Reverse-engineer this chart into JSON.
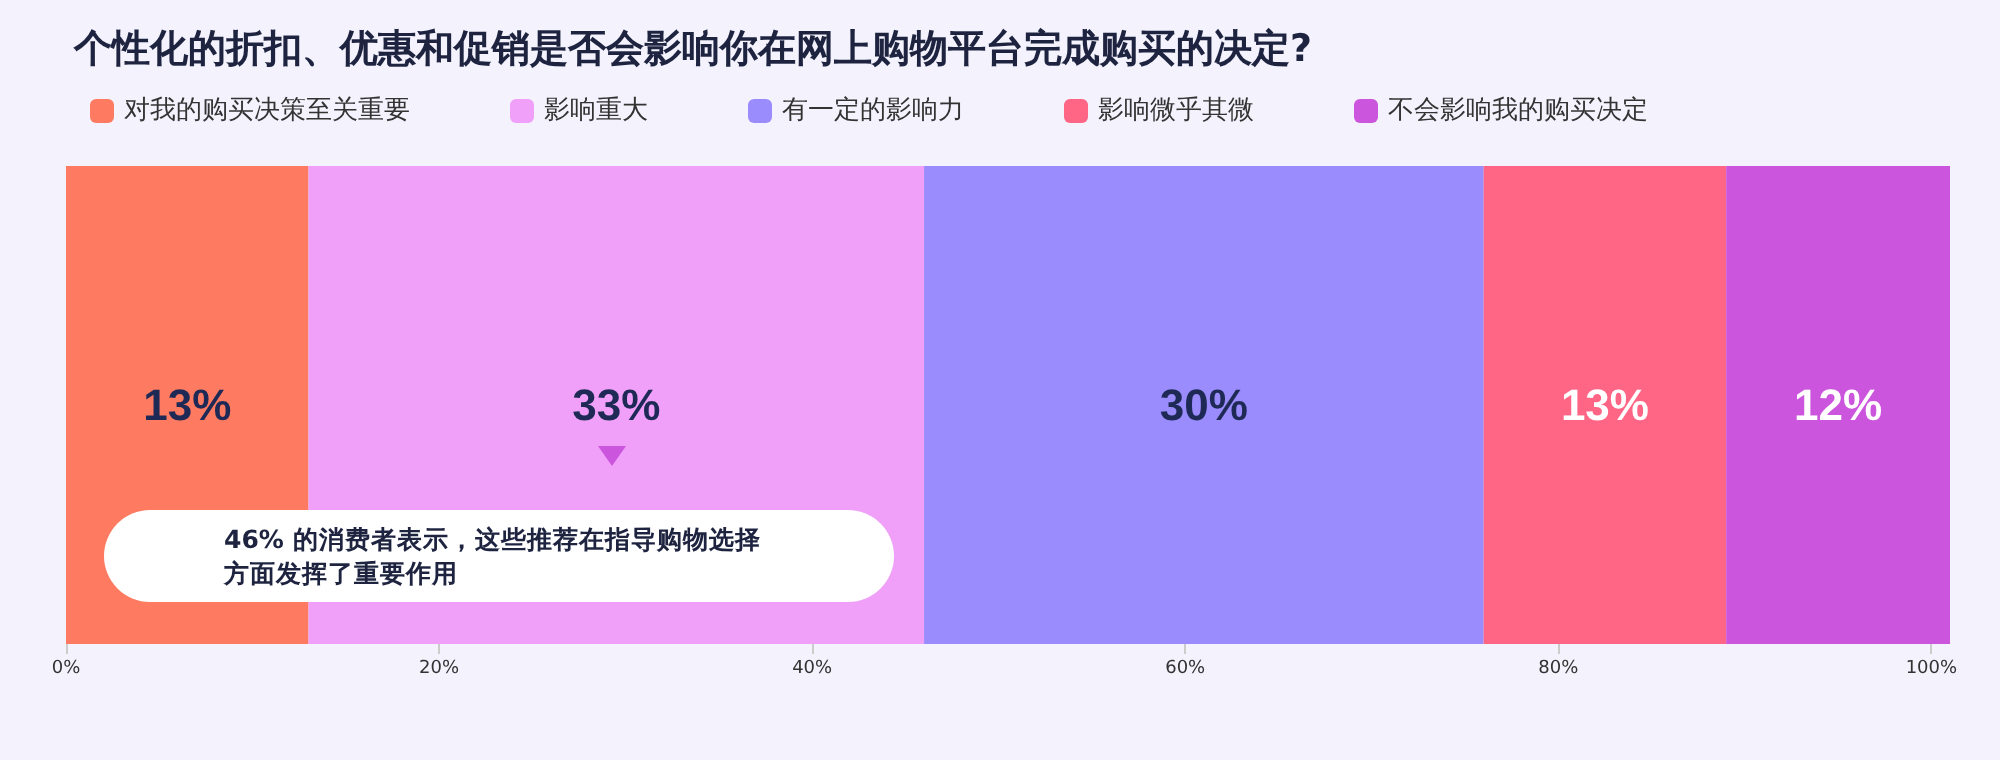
{
  "chart_data": {
    "type": "bar",
    "orientation": "horizontal",
    "stacked": true,
    "title": "个性化的折扣、优惠和促销是否会影响你在网上购物平台完成购买的决定?",
    "categories": [
      null
    ],
    "series": [
      {
        "name": "对我的购买决策至关重要",
        "color": "#fe7b62",
        "values": [
          13
        ],
        "value_labels": [
          "13%"
        ]
      },
      {
        "name": "影响重大",
        "color": "#f0a0f8",
        "values": [
          33
        ],
        "value_labels": [
          "33%"
        ]
      },
      {
        "name": "有一定的影响力",
        "color": "#9b8cfd",
        "values": [
          30
        ],
        "value_labels": [
          "30%"
        ]
      },
      {
        "name": "影响微乎其微",
        "color": "#ff6585",
        "values": [
          13
        ],
        "value_labels": [
          "13%"
        ]
      },
      {
        "name": "不会影响我的购买决定",
        "color": "#cc55dd",
        "values": [
          12
        ],
        "value_labels": [
          "12%"
        ]
      }
    ],
    "xlim": [
      0,
      101
    ],
    "xticks": [
      {
        "value": 0,
        "label": "0%"
      },
      {
        "value": 20,
        "label": "20%"
      },
      {
        "value": 40,
        "label": "40%"
      },
      {
        "value": 60,
        "label": "60%"
      },
      {
        "value": 80,
        "label": "80%"
      },
      {
        "value": 100,
        "label": "100%"
      }
    ],
    "legend": "top left",
    "annotations": [
      "46% 的消费者表示，这些推荐在指导购物选择方面发挥了重要作用"
    ]
  }
}
